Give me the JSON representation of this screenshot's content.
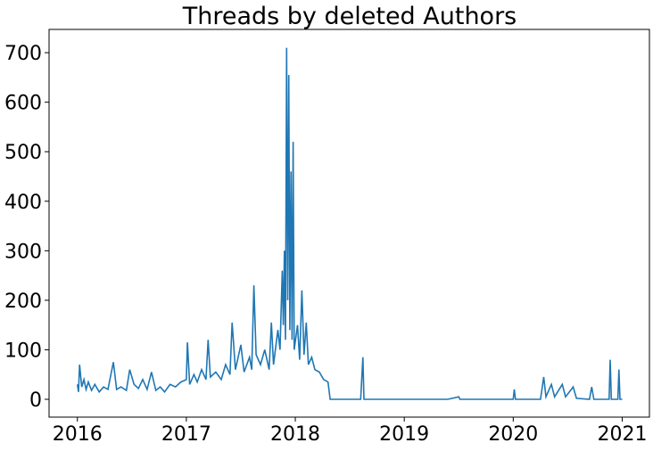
{
  "chart_data": {
    "type": "line",
    "title": "Threads by deleted Authors",
    "x": [
      2016.0,
      2016.01,
      2016.02,
      2016.04,
      2016.06,
      2016.08,
      2016.1,
      2016.13,
      2016.16,
      2016.2,
      2016.24,
      2016.28,
      2016.33,
      2016.36,
      2016.4,
      2016.45,
      2016.48,
      2016.52,
      2016.56,
      2016.6,
      2016.64,
      2016.68,
      2016.72,
      2016.76,
      2016.8,
      2016.85,
      2016.9,
      2016.95,
      2017.0,
      2017.01,
      2017.03,
      2017.07,
      2017.1,
      2017.14,
      2017.18,
      2017.2,
      2017.22,
      2017.27,
      2017.32,
      2017.36,
      2017.4,
      2017.42,
      2017.45,
      2017.5,
      2017.53,
      2017.58,
      2017.6,
      2017.62,
      2017.64,
      2017.68,
      2017.72,
      2017.76,
      2017.78,
      2017.8,
      2017.84,
      2017.86,
      2017.88,
      2017.89,
      2017.9,
      2017.91,
      2017.92,
      2017.93,
      2017.94,
      2017.95,
      2017.96,
      2017.97,
      2017.98,
      2017.99,
      2018.02,
      2018.04,
      2018.06,
      2018.08,
      2018.1,
      2018.12,
      2018.15,
      2018.18,
      2018.22,
      2018.26,
      2018.3,
      2018.32,
      2018.6,
      2018.62,
      2018.63,
      2019.0,
      2019.4,
      2019.5,
      2019.51,
      2020.0,
      2020.01,
      2020.02,
      2020.25,
      2020.28,
      2020.3,
      2020.35,
      2020.38,
      2020.45,
      2020.48,
      2020.55,
      2020.58,
      2020.7,
      2020.72,
      2020.74,
      2020.88,
      2020.89,
      2020.9,
      2020.96,
      2020.97,
      2020.98,
      2021.0
    ],
    "series": [
      {
        "color": "#1f77b4",
        "values": [
          30,
          15,
          70,
          25,
          40,
          20,
          35,
          18,
          30,
          15,
          25,
          20,
          75,
          20,
          25,
          18,
          60,
          30,
          22,
          40,
          20,
          55,
          18,
          25,
          15,
          30,
          25,
          35,
          40,
          115,
          30,
          50,
          35,
          60,
          40,
          120,
          45,
          55,
          40,
          70,
          50,
          155,
          60,
          110,
          55,
          85,
          60,
          230,
          90,
          70,
          100,
          60,
          155,
          70,
          140,
          100,
          260,
          150,
          300,
          120,
          710,
          200,
          655,
          140,
          460,
          120,
          520,
          100,
          150,
          80,
          220,
          90,
          155,
          70,
          85,
          60,
          55,
          40,
          35,
          0,
          0,
          85,
          0,
          0,
          0,
          5,
          0,
          0,
          20,
          0,
          0,
          45,
          5,
          30,
          5,
          30,
          5,
          25,
          2,
          0,
          25,
          0,
          0,
          80,
          0,
          0,
          60,
          0,
          0
        ]
      }
    ],
    "xlim": [
      2015.74,
      2021.25
    ],
    "ylim": [
      -36,
      747
    ],
    "xticks": [
      2016,
      2017,
      2018,
      2019,
      2020,
      2021
    ],
    "yticks": [
      0,
      100,
      200,
      300,
      400,
      500,
      600,
      700
    ]
  }
}
